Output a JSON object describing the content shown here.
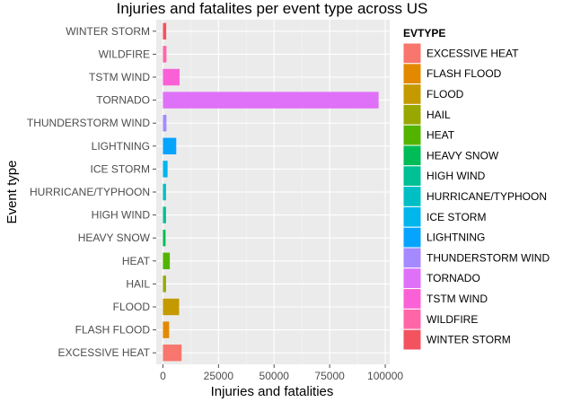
{
  "chart_data": {
    "type": "bar",
    "orientation": "horizontal",
    "title": "Injuries and fatalites per event type across US",
    "xlabel": "Injuries and fatalities",
    "ylabel": "Event type",
    "xlim": [
      -3000,
      102000
    ],
    "xticks": [
      0,
      25000,
      50000,
      75000,
      100000
    ],
    "xtick_labels": [
      "0",
      "25000",
      "50000",
      "75000",
      "100000"
    ],
    "categories": [
      "EXCESSIVE HEAT",
      "FLASH FLOOD",
      "FLOOD",
      "HAIL",
      "HEAT",
      "HEAVY SNOW",
      "HIGH WIND",
      "HURRICANE/TYPHOON",
      "ICE STORM",
      "LIGHTNING",
      "THUNDERSTORM WIND",
      "TORNADO",
      "TSTM WIND",
      "WILDFIRE",
      "WINTER STORM"
    ],
    "values": [
      8400,
      2800,
      7300,
      1400,
      3100,
      1200,
      1400,
      1400,
      2100,
      6000,
      1600,
      97000,
      7500,
      1600,
      1500
    ],
    "colors": [
      "#F8766D",
      "#E38900",
      "#C49A00",
      "#99A800",
      "#53B400",
      "#00BC56",
      "#00C094",
      "#00BFC4",
      "#00B6EB",
      "#06A4FF",
      "#A58AFF",
      "#DF70F8",
      "#FB61D7",
      "#FF66A8",
      "#F2535F"
    ],
    "legend": {
      "title": "EVTYPE",
      "position": "right"
    },
    "grid": true,
    "panel_background": "#EBEBEB"
  }
}
